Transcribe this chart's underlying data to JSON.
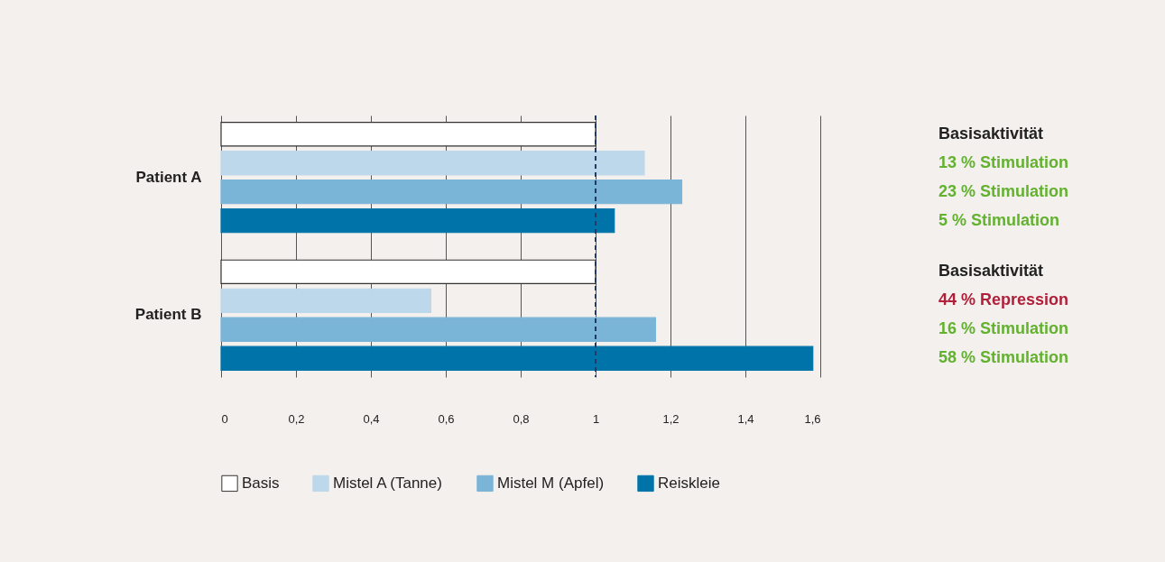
{
  "chart_data": {
    "type": "bar",
    "orientation": "horizontal",
    "categories": [
      "Patient A",
      "Patient B"
    ],
    "series": [
      {
        "name": "Basis",
        "color": "#ffffff",
        "values": [
          1,
          1
        ]
      },
      {
        "name": "Mistel A (Tanne)",
        "color": "#bdd8eb",
        "values": [
          1.13,
          0.56
        ]
      },
      {
        "name": "Mistel M (Apfel)",
        "color": "#7ab4d6",
        "values": [
          1.23,
          1.16
        ]
      },
      {
        "name": "Reiskleie",
        "color": "#0074a8",
        "values": [
          1.05,
          1.58
        ]
      }
    ],
    "annotations": [
      "Basisaktivität",
      "13 % Stimulation",
      "23 % Stimulation",
      "5 % Stimulation",
      "Basisaktivität",
      "44 % Repression",
      "16 % Stimulation",
      "58 % Stimulation"
    ],
    "xlim": [
      0,
      1.6
    ],
    "xticks": [
      0,
      {
        "value": 0.2,
        "label": "0,2"
      },
      {
        "value": 0.4,
        "label": "0,4"
      },
      {
        "value": 0.6,
        "label": "0,6"
      },
      {
        "value": 0.8,
        "label": "0,8"
      },
      1,
      {
        "value": 1.2,
        "label": "1,2"
      },
      {
        "value": 1.4,
        "label": "1,4"
      },
      {
        "value": 1.6,
        "label": "1,6"
      }
    ],
    "ref_lines": [
      {
        "axis": "x",
        "value": 1,
        "color": "#1f3b63",
        "line_style": "dashed"
      }
    ],
    "grid": "x",
    "legend": "bottom"
  }
}
